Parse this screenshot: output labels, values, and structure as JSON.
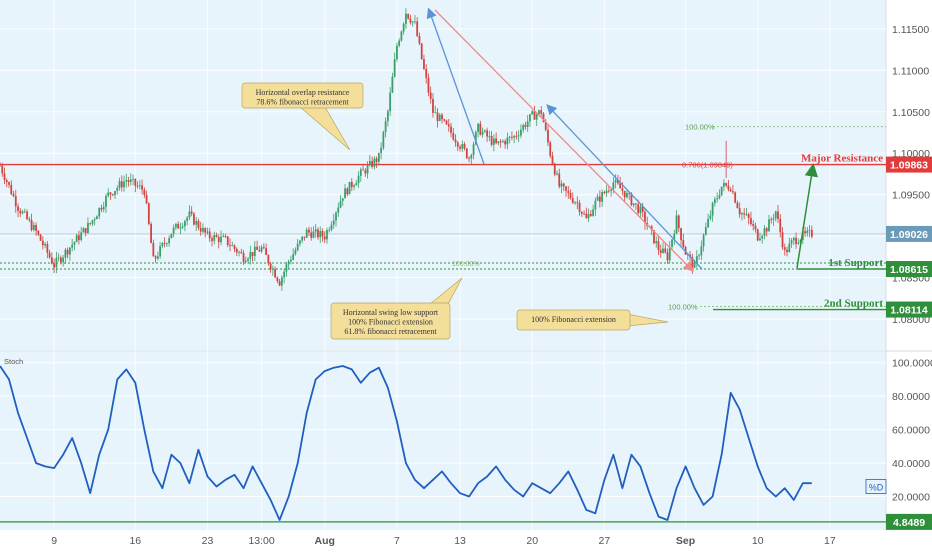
{
  "colors": {
    "background": "#e8f4fb",
    "candle_up": "#3a9f6b",
    "candle_down": "#d0443f",
    "resistance": "#e23b3b",
    "support": "#2f8f3a",
    "stoch": "#1f5fc0",
    "arrow_blue": "#5b94d6",
    "arrow_red": "#ee8a8a",
    "callout_fill": "#f3df9a",
    "axis_text": "#555555"
  },
  "chart_data": [
    {
      "type": "candlestick",
      "instrument_label": "",
      "y_ticks": [
        "1.11500",
        "1.11000",
        "1.10500",
        "1.10000",
        "1.09500",
        "1.09000",
        "1.08500",
        "1.08000"
      ],
      "y_tick_values": [
        1.115,
        1.11,
        1.105,
        1.1,
        1.095,
        1.09,
        1.085,
        1.08
      ],
      "ylim": [
        1.0765,
        1.118
      ],
      "x_ticks": [
        "9",
        "16",
        "23",
        "13:00",
        "Aug",
        "7",
        "13",
        "20",
        "27",
        "Sep",
        "10",
        "17"
      ],
      "x_tick_index": [
        6,
        15,
        23,
        29,
        36,
        44,
        51,
        59,
        67,
        76,
        84,
        92
      ],
      "x_bold_ticks": [
        "Aug",
        "Sep"
      ],
      "x_range_index": [
        0,
        98
      ],
      "close_path": [
        [
          0,
          1.0985
        ],
        [
          2,
          1.0935
        ],
        [
          4,
          1.0905
        ],
        [
          6,
          1.0865
        ],
        [
          8,
          1.089
        ],
        [
          10,
          1.0915
        ],
        [
          12,
          1.095
        ],
        [
          14,
          1.0968
        ],
        [
          16,
          1.0955
        ],
        [
          17,
          1.087
        ],
        [
          19,
          1.0905
        ],
        [
          21,
          1.0925
        ],
        [
          23,
          1.09
        ],
        [
          25,
          1.0895
        ],
        [
          27,
          1.0875
        ],
        [
          29,
          1.0885
        ],
        [
          31,
          1.0845
        ],
        [
          32,
          1.087
        ],
        [
          34,
          1.0905
        ],
        [
          36,
          1.09
        ],
        [
          38,
          1.095
        ],
        [
          40,
          1.0975
        ],
        [
          42,
          1.0995
        ],
        [
          43,
          1.105
        ],
        [
          44,
          1.113
        ],
        [
          45,
          1.117
        ],
        [
          46,
          1.1155
        ],
        [
          47,
          1.11
        ],
        [
          48,
          1.105
        ],
        [
          50,
          1.1025
        ],
        [
          52,
          1.0995
        ],
        [
          53,
          1.103
        ],
        [
          55,
          1.101
        ],
        [
          57,
          1.102
        ],
        [
          59,
          1.1045
        ],
        [
          60,
          1.105
        ],
        [
          61,
          1.1
        ],
        [
          62,
          1.096
        ],
        [
          64,
          1.094
        ],
        [
          65,
          1.092
        ],
        [
          66,
          1.094
        ],
        [
          68,
          1.0965
        ],
        [
          69,
          1.0955
        ],
        [
          71,
          1.093
        ],
        [
          73,
          1.0885
        ],
        [
          74,
          1.0875
        ],
        [
          75,
          1.092
        ],
        [
          76,
          1.088
        ],
        [
          77,
          1.0862
        ],
        [
          78,
          1.09
        ],
        [
          79,
          1.0935
        ],
        [
          80,
          1.096
        ],
        [
          81,
          1.096
        ],
        [
          82,
          1.093
        ],
        [
          83,
          1.092
        ],
        [
          84,
          1.09
        ],
        [
          85,
          1.091
        ],
        [
          86,
          1.093
        ],
        [
          87,
          1.088
        ],
        [
          88,
          1.0895
        ],
        [
          89,
          1.09
        ],
        [
          90,
          1.0903
        ]
      ],
      "last_price": "1.09026",
      "levels": [
        {
          "name": "Major Resistance",
          "value": 1.09863,
          "label": "1.09863",
          "kind": "resistance"
        },
        {
          "name": "1st Support",
          "value": 1.08615,
          "label": "1.08615",
          "kind": "support"
        },
        {
          "name": "2nd Support",
          "value": 1.08114,
          "label": "1.08114",
          "kind": "support"
        }
      ],
      "annotations": {
        "callouts": [
          {
            "lines": [
              "Horizontal overlap resistance",
              "78.6% fibonacci retracement"
            ]
          },
          {
            "lines": [
              "Horizontal swing low support",
              "100% Fibonacci extension",
              "61.8% fibonacci retracement"
            ]
          },
          {
            "lines": [
              "100% Fibonacci extension"
            ]
          }
        ],
        "fib_labels": [
          "100.00%",
          "0.786(1.09849)",
          "100.00%",
          "100.00%"
        ]
      }
    },
    {
      "type": "line",
      "title": "Stoch",
      "series": [
        {
          "name": "%D",
          "x": [
            0,
            1,
            2,
            3,
            4,
            5,
            6,
            7,
            8,
            9,
            10,
            11,
            12,
            13,
            14,
            15,
            16,
            17,
            18,
            19,
            20,
            21,
            22,
            23,
            24,
            25,
            26,
            27,
            28,
            29,
            30,
            31,
            32,
            33,
            34,
            35,
            36,
            37,
            38,
            39,
            40,
            41,
            42,
            43,
            44,
            45,
            46,
            47,
            48,
            49,
            50,
            51,
            52,
            53,
            54,
            55,
            56,
            57,
            58,
            59,
            60,
            61,
            62,
            63,
            64,
            65,
            66,
            67,
            68,
            69,
            70,
            71,
            72,
            73,
            74,
            75,
            76,
            77,
            78,
            79,
            80,
            81,
            82,
            83,
            84,
            85,
            86,
            87,
            88,
            89,
            90
          ],
          "values": [
            98,
            90,
            70,
            55,
            40,
            38,
            37,
            45,
            55,
            40,
            22,
            45,
            60,
            90,
            96,
            88,
            60,
            35,
            25,
            45,
            40,
            28,
            48,
            32,
            26,
            30,
            33,
            25,
            38,
            28,
            18,
            6,
            20,
            40,
            70,
            90,
            95,
            97,
            98,
            96,
            88,
            94,
            97,
            85,
            65,
            40,
            30,
            25,
            30,
            35,
            28,
            22,
            20,
            28,
            32,
            38,
            30,
            24,
            20,
            28,
            25,
            22,
            28,
            35,
            24,
            12,
            10,
            30,
            45,
            25,
            45,
            38,
            22,
            8,
            6,
            25,
            38,
            25,
            15,
            20,
            45,
            82,
            72,
            55,
            38,
            25,
            20,
            25,
            18,
            28,
            28
          ]
        }
      ],
      "y_ticks": [
        "100.0000",
        "80.0000",
        "60.0000",
        "40.0000",
        "20.0000"
      ],
      "y_tick_values": [
        100,
        80,
        60,
        40,
        20
      ],
      "ylim": [
        0,
        104
      ],
      "hline": {
        "value": 4.8489,
        "label": "4.8489"
      },
      "legend_label": "%D"
    }
  ]
}
